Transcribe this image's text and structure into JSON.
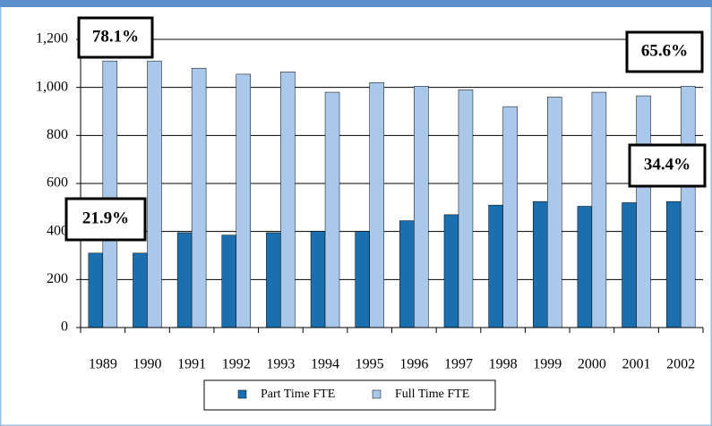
{
  "chart_data": {
    "type": "bar",
    "categories": [
      "1989",
      "1990",
      "1991",
      "1992",
      "1993",
      "1994",
      "1995",
      "1996",
      "1997",
      "1998",
      "1999",
      "2000",
      "2001",
      "2002"
    ],
    "series": [
      {
        "name": "Part Time FTE",
        "color": "#1b6fae",
        "values": [
          310,
          310,
          395,
          385,
          395,
          400,
          400,
          445,
          470,
          510,
          525,
          505,
          520,
          525
        ]
      },
      {
        "name": "Full Time FTE",
        "color": "#a9c8ea",
        "values": [
          1110,
          1110,
          1080,
          1055,
          1065,
          980,
          1020,
          1005,
          990,
          920,
          960,
          980,
          965,
          1005
        ]
      }
    ],
    "ylim": [
      0,
      1200
    ],
    "yticks": [
      0,
      200,
      400,
      600,
      800,
      {
        "value": 1000,
        "label": "1,000"
      },
      {
        "value": 1200,
        "label": "1,200"
      }
    ],
    "grid": true,
    "annotations": [
      "78.1%",
      "65.6%",
      "21.9%",
      "34.4%"
    ]
  }
}
